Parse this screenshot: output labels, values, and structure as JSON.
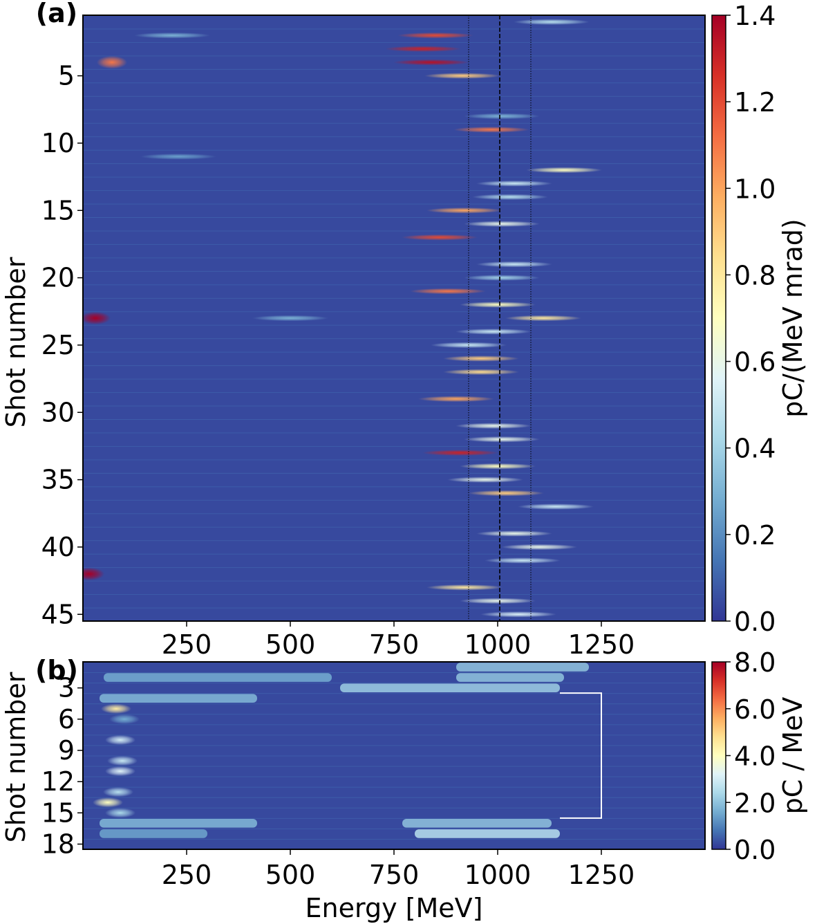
{
  "chart_data": [
    {
      "panel": "(a)",
      "type": "heatmap",
      "xlabel": "",
      "ylabel": "Shot number",
      "colorbar_label": "pC/(MeV mrad)",
      "colormap": "RdYlBu_r",
      "xlim": [
        0,
        1500
      ],
      "ylim": [
        45,
        1
      ],
      "x_ticks": [
        250,
        500,
        750,
        1000,
        1250
      ],
      "y_ticks": [
        5,
        10,
        15,
        20,
        25,
        30,
        35,
        40,
        45
      ],
      "colorbar_range": [
        0.0,
        1.4
      ],
      "colorbar_ticks": [
        "0.0",
        "0.2",
        "0.4",
        "0.6",
        "0.8",
        "1.0",
        "1.2",
        "1.4"
      ],
      "reference_lines": [
        {
          "x": 930,
          "style": "dotted"
        },
        {
          "x": 1005,
          "style": "dashed"
        },
        {
          "x": 1080,
          "style": "dotted"
        }
      ],
      "peaks": [
        {
          "shot": 1,
          "energy": 1130,
          "value": 0.45
        },
        {
          "shot": 2,
          "energy": 215,
          "value": 0.3
        },
        {
          "shot": 2,
          "energy": 850,
          "value": 1.2
        },
        {
          "shot": 3,
          "energy": 820,
          "value": 1.3
        },
        {
          "shot": 4,
          "energy": 840,
          "value": 1.35
        },
        {
          "shot": 5,
          "energy": 915,
          "value": 0.9
        },
        {
          "shot": 8,
          "energy": 1010,
          "value": 0.3
        },
        {
          "shot": 9,
          "energy": 985,
          "value": 1.1
        },
        {
          "shot": 11,
          "energy": 230,
          "value": 0.25
        },
        {
          "shot": 12,
          "energy": 1160,
          "value": 0.7
        },
        {
          "shot": 13,
          "energy": 1040,
          "value": 0.5
        },
        {
          "shot": 14,
          "energy": 1030,
          "value": 0.45
        },
        {
          "shot": 15,
          "energy": 920,
          "value": 1.0
        },
        {
          "shot": 16,
          "energy": 1010,
          "value": 0.6
        },
        {
          "shot": 17,
          "energy": 860,
          "value": 1.2
        },
        {
          "shot": 19,
          "energy": 1040,
          "value": 0.5
        },
        {
          "shot": 20,
          "energy": 1010,
          "value": 0.4
        },
        {
          "shot": 21,
          "energy": 880,
          "value": 1.1
        },
        {
          "shot": 22,
          "energy": 1000,
          "value": 0.7
        },
        {
          "shot": 23,
          "energy": 1110,
          "value": 0.8
        },
        {
          "shot": 23,
          "energy": 500,
          "value": 0.3
        },
        {
          "shot": 24,
          "energy": 990,
          "value": 0.5
        },
        {
          "shot": 25,
          "energy": 930,
          "value": 0.5
        },
        {
          "shot": 26,
          "energy": 960,
          "value": 0.9
        },
        {
          "shot": 27,
          "energy": 960,
          "value": 0.85
        },
        {
          "shot": 29,
          "energy": 900,
          "value": 1.0
        },
        {
          "shot": 31,
          "energy": 990,
          "value": 0.6
        },
        {
          "shot": 32,
          "energy": 1010,
          "value": 0.6
        },
        {
          "shot": 33,
          "energy": 910,
          "value": 1.3
        },
        {
          "shot": 34,
          "energy": 1000,
          "value": 0.7
        },
        {
          "shot": 35,
          "energy": 970,
          "value": 0.6
        },
        {
          "shot": 36,
          "energy": 1020,
          "value": 0.9
        },
        {
          "shot": 37,
          "energy": 1140,
          "value": 0.5
        },
        {
          "shot": 39,
          "energy": 1040,
          "value": 0.6
        },
        {
          "shot": 40,
          "energy": 1100,
          "value": 0.6
        },
        {
          "shot": 41,
          "energy": 1060,
          "value": 0.5
        },
        {
          "shot": 43,
          "energy": 920,
          "value": 0.8
        },
        {
          "shot": 44,
          "energy": 1000,
          "value": 0.6
        },
        {
          "shot": 45,
          "energy": 1050,
          "value": 0.55
        }
      ],
      "low_energy_hotspots": [
        {
          "shot": 23,
          "energy": 30,
          "value": 1.4
        },
        {
          "shot": 42,
          "energy": 15,
          "value": 1.4
        },
        {
          "shot": 4,
          "energy": 70,
          "value": 1.1
        }
      ]
    },
    {
      "panel": "(b)",
      "type": "heatmap",
      "xlabel": "Energy [MeV]",
      "ylabel": "Shot number",
      "colorbar_label": "pC / MeV",
      "colormap": "RdYlBu_r",
      "xlim": [
        0,
        1500
      ],
      "ylim": [
        18,
        1
      ],
      "x_ticks": [
        250,
        500,
        750,
        1000,
        1250
      ],
      "y_ticks": [
        3,
        6,
        9,
        12,
        15,
        18
      ],
      "colorbar_range": [
        0.0,
        8.0
      ],
      "colorbar_ticks": [
        "0.0",
        "2.0",
        "4.0",
        "6.0",
        "8.0"
      ],
      "bracket": {
        "x_start": 1150,
        "x_end": 1250,
        "shot_from": 4,
        "shot_to": 15,
        "color": "#ffffff"
      },
      "bands": [
        {
          "shot": 1,
          "from": 900,
          "to": 1220,
          "value": 2.0
        },
        {
          "shot": 2,
          "from": 50,
          "to": 600,
          "value": 1.6
        },
        {
          "shot": 2,
          "from": 900,
          "to": 1160,
          "value": 2.0
        },
        {
          "shot": 3,
          "from": 620,
          "to": 1150,
          "value": 2.2
        },
        {
          "shot": 4,
          "from": 40,
          "to": 420,
          "value": 1.8
        },
        {
          "shot": 16,
          "from": 40,
          "to": 420,
          "value": 1.8
        },
        {
          "shot": 16,
          "from": 770,
          "to": 1130,
          "value": 2.0
        },
        {
          "shot": 17,
          "from": 40,
          "to": 300,
          "value": 1.5
        },
        {
          "shot": 17,
          "from": 800,
          "to": 1150,
          "value": 2.6
        }
      ],
      "low_energy_spots": [
        {
          "shot": 5,
          "energy": 80,
          "value": 4.5
        },
        {
          "shot": 6,
          "energy": 100,
          "value": 1.6
        },
        {
          "shot": 8,
          "energy": 90,
          "value": 3.0
        },
        {
          "shot": 10,
          "energy": 95,
          "value": 2.8
        },
        {
          "shot": 11,
          "energy": 90,
          "value": 3.2
        },
        {
          "shot": 13,
          "energy": 85,
          "value": 2.6
        },
        {
          "shot": 14,
          "energy": 60,
          "value": 4.0
        },
        {
          "shot": 15,
          "energy": 90,
          "value": 2.4
        }
      ]
    }
  ]
}
